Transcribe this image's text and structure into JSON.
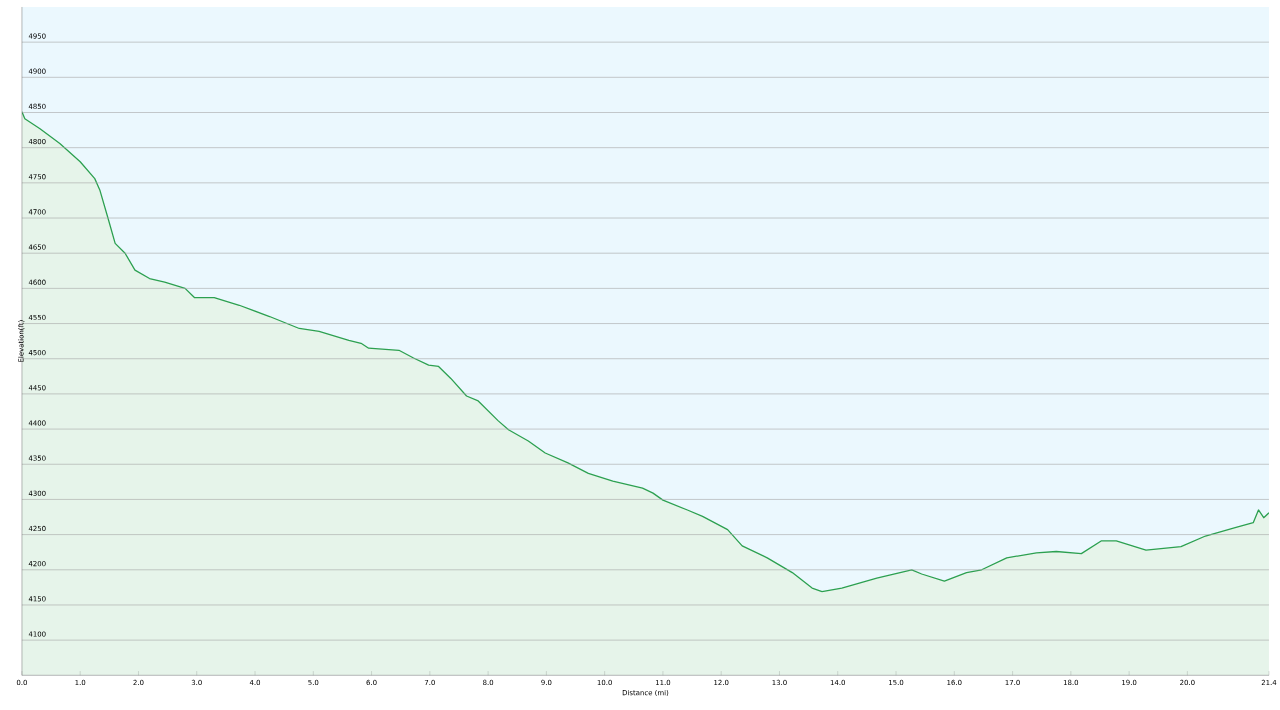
{
  "chart_data": {
    "type": "area",
    "xlabel": "Distance  (mi)",
    "ylabel": "Elevation(ft)",
    "xlim": [
      0,
      21.4
    ],
    "ylim": [
      4050,
      5000
    ],
    "xticks": [
      {
        "value": 0,
        "label": "0.0"
      },
      {
        "value": 1,
        "label": "1.0"
      },
      {
        "value": 2,
        "label": "2.0"
      },
      {
        "value": 3,
        "label": "3.0"
      },
      {
        "value": 4,
        "label": "4.0"
      },
      {
        "value": 5,
        "label": "5.0"
      },
      {
        "value": 6,
        "label": "6.0"
      },
      {
        "value": 7,
        "label": "7.0"
      },
      {
        "value": 8,
        "label": "8.0"
      },
      {
        "value": 9,
        "label": "9.0"
      },
      {
        "value": 10,
        "label": "10.0"
      },
      {
        "value": 11,
        "label": "11.0"
      },
      {
        "value": 12,
        "label": "12.0"
      },
      {
        "value": 13,
        "label": "13.0"
      },
      {
        "value": 14,
        "label": "14.0"
      },
      {
        "value": 15,
        "label": "15.0"
      },
      {
        "value": 16,
        "label": "16.0"
      },
      {
        "value": 17,
        "label": "17.0"
      },
      {
        "value": 18,
        "label": "18.0"
      },
      {
        "value": 19,
        "label": "19.0"
      },
      {
        "value": 20,
        "label": "20.0"
      },
      {
        "value": 21.4,
        "label": "21.4"
      }
    ],
    "yticks": [
      4100,
      4150,
      4200,
      4250,
      4300,
      4350,
      4400,
      4450,
      4500,
      4550,
      4600,
      4650,
      4700,
      4750,
      4800,
      4850,
      4900,
      4950
    ],
    "grid": "y",
    "marker": "none",
    "line_style": "solid",
    "x": [
      0,
      0.05,
      0.31,
      0.65,
      1.0,
      1.25,
      1.34,
      1.48,
      1.6,
      1.77,
      1.94,
      2.19,
      2.45,
      2.8,
      2.96,
      3.3,
      3.73,
      4.25,
      4.76,
      5.1,
      5.61,
      5.82,
      5.95,
      6.47,
      6.72,
      6.98,
      7.15,
      7.36,
      7.63,
      7.83,
      8.17,
      8.35,
      8.69,
      8.98,
      9.37,
      9.72,
      10.14,
      10.65,
      10.83,
      11.0,
      11.42,
      11.68,
      12.11,
      12.36,
      12.79,
      13.22,
      13.56,
      13.73,
      14.07,
      14.67,
      15.27,
      15.44,
      15.83,
      16.21,
      16.47,
      16.9,
      17.41,
      17.75,
      18.18,
      18.52,
      18.78,
      19.29,
      19.89,
      20.31,
      20.82,
      21.13,
      21.22,
      21.31,
      21.4
    ],
    "series": [
      {
        "color": "#2ca050",
        "values": [
          4851,
          4841,
          4827,
          4806,
          4780,
          4756,
          4739,
          4699,
          4664,
          4650,
          4626,
          4614,
          4609,
          4600,
          4587,
          4587,
          4576,
          4560,
          4543,
          4539,
          4526,
          4522,
          4515,
          4512,
          4501,
          4491,
          4489,
          4472,
          4447,
          4440,
          4412,
          4399,
          4383,
          4366,
          4352,
          4337,
          4326,
          4316,
          4309,
          4299,
          4285,
          4276,
          4257,
          4234,
          4217,
          4196,
          4174,
          4169,
          4174,
          4188,
          4200,
          4194,
          4184,
          4196,
          4200,
          4217,
          4224,
          4226,
          4223,
          4241,
          4241,
          4228,
          4233,
          4248,
          4260,
          4267,
          4285,
          4274,
          4281
        ]
      }
    ]
  }
}
